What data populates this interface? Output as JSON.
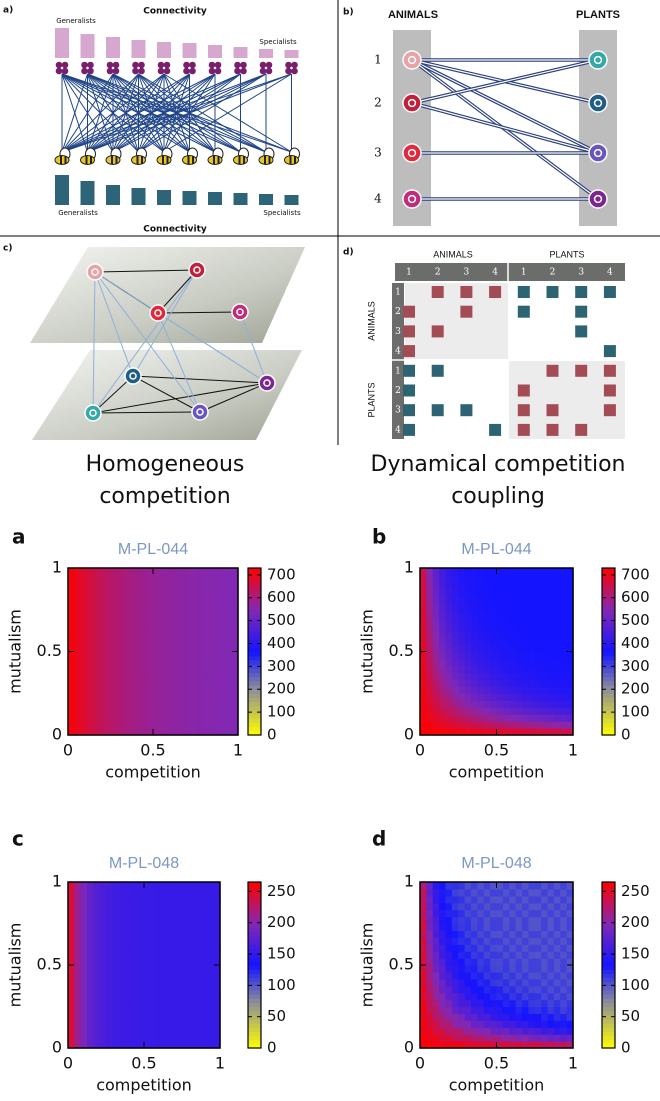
{
  "panel_a": {
    "label": "a)",
    "title": "Connectivity",
    "generalists_top": "Generalists",
    "specialists_top": "Specialists",
    "generalists_bottom": "Generalists",
    "specialists_bottom": "Specialists",
    "xlabel": "Connectivity"
  },
  "panel_b": {
    "label": "b)",
    "animals": "ANIMALS",
    "plants": "PLANTS",
    "rows": [
      1,
      2,
      3,
      4
    ]
  },
  "panel_c": {
    "label": "c)"
  },
  "panel_d": {
    "label": "d)",
    "animals": "ANIMALS",
    "plants": "PLANTS",
    "row_animals": "ANIMALS",
    "row_plants": "PLANTS",
    "indices": [
      1,
      2,
      3,
      4
    ],
    "red": [
      [
        0,
        1
      ],
      [
        0,
        2
      ],
      [
        0,
        3
      ],
      [
        1,
        0
      ],
      [
        1,
        2
      ],
      [
        2,
        0
      ],
      [
        2,
        1
      ],
      [
        3,
        0
      ],
      [
        4,
        5
      ],
      [
        4,
        6
      ],
      [
        4,
        7
      ],
      [
        5,
        4
      ],
      [
        5,
        7
      ],
      [
        6,
        4
      ],
      [
        6,
        5
      ],
      [
        6,
        7
      ],
      [
        7,
        4
      ],
      [
        7,
        5
      ],
      [
        7,
        6
      ]
    ],
    "teal": [
      [
        0,
        4
      ],
      [
        0,
        5
      ],
      [
        0,
        6
      ],
      [
        0,
        7
      ],
      [
        1,
        4
      ],
      [
        1,
        6
      ],
      [
        2,
        6
      ],
      [
        3,
        7
      ],
      [
        4,
        0
      ],
      [
        4,
        1
      ],
      [
        5,
        0
      ],
      [
        6,
        0
      ],
      [
        6,
        1
      ],
      [
        6,
        2
      ],
      [
        7,
        0
      ],
      [
        7,
        3
      ]
    ]
  },
  "captions": {
    "left": [
      "Homogeneous",
      "competition"
    ],
    "right": [
      "Dynamical competition",
      "coupling"
    ]
  },
  "heatmaps": [
    {
      "label": "a",
      "title": "M-PL-044",
      "xlabel": "competition",
      "ylabel": "mutualism",
      "xlim": [
        0,
        1
      ],
      "ylim": [
        0,
        1
      ],
      "xticks": [
        0,
        0.5,
        1
      ],
      "yticks": [
        0,
        0.5,
        1
      ],
      "clim": [
        0,
        730
      ],
      "cticks": [
        0,
        100,
        200,
        300,
        400,
        500,
        600,
        700
      ]
    },
    {
      "label": "b",
      "title": "M-PL-044",
      "xlabel": "competition",
      "ylabel": "mutualism",
      "xlim": [
        0,
        1
      ],
      "ylim": [
        0,
        1
      ],
      "xticks": [
        0,
        0.5,
        1
      ],
      "yticks": [
        0,
        0.5,
        1
      ],
      "clim": [
        0,
        730
      ],
      "cticks": [
        0,
        100,
        200,
        300,
        400,
        500,
        600,
        700
      ]
    },
    {
      "label": "c",
      "title": "M-PL-048",
      "xlabel": "competition",
      "ylabel": "mutualism",
      "xlim": [
        0,
        1
      ],
      "ylim": [
        0,
        1
      ],
      "xticks": [
        0,
        0.5,
        1
      ],
      "yticks": [
        0,
        0.5,
        1
      ],
      "clim": [
        0,
        265
      ],
      "cticks": [
        0,
        50,
        100,
        150,
        200,
        250
      ]
    },
    {
      "label": "d",
      "title": "M-PL-048",
      "xlabel": "competition",
      "ylabel": "mutualism",
      "xlim": [
        0,
        1
      ],
      "ylim": [
        0,
        1
      ],
      "xticks": [
        0,
        0.5,
        1
      ],
      "yticks": [
        0,
        0.5,
        1
      ],
      "clim": [
        0,
        265
      ],
      "cticks": [
        0,
        50,
        100,
        150,
        200,
        250
      ]
    }
  ]
}
